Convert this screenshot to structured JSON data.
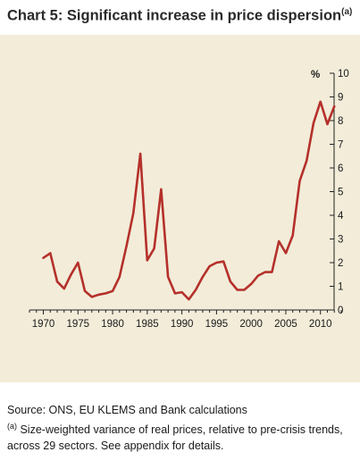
{
  "title": {
    "text": "Chart 5: Significant increase in price dispersion",
    "marker": "(a)"
  },
  "chart_data": {
    "type": "line",
    "title": "Chart 5: Significant increase in price dispersion",
    "xlabel": "",
    "ylabel": "",
    "y_unit": "%",
    "xlim": [
      1968,
      2013
    ],
    "ylim": [
      0,
      10
    ],
    "x_ticks": [
      1970,
      1975,
      1980,
      1985,
      1990,
      1995,
      2000,
      2005,
      2010
    ],
    "y_ticks": [
      0,
      1,
      2,
      3,
      4,
      5,
      6,
      7,
      8,
      9,
      10
    ],
    "y_axis_position": "right",
    "grid": false,
    "series_color": "#b5302a",
    "series": [
      {
        "x": [
          1970,
          1971,
          1972,
          1973,
          1974,
          1975,
          1976,
          1977,
          1978,
          1979,
          1980,
          1981,
          1982,
          1983,
          1984,
          1985,
          1986,
          1987,
          1988,
          1989,
          1990,
          1991,
          1992,
          1993,
          1994,
          1995,
          1996,
          1997,
          1998,
          1999,
          2000,
          2001,
          2002,
          2003,
          2004,
          2005,
          2006,
          2007,
          2008,
          2009,
          2010,
          2011,
          2012
        ],
        "values": [
          2.2,
          2.4,
          1.2,
          0.9,
          1.5,
          2.0,
          0.8,
          0.55,
          0.65,
          0.7,
          0.8,
          1.4,
          2.7,
          4.1,
          6.6,
          2.1,
          2.6,
          5.1,
          1.4,
          0.7,
          0.75,
          0.45,
          0.85,
          1.4,
          1.85,
          2.0,
          2.05,
          1.2,
          0.85,
          0.85,
          1.1,
          1.45,
          1.6,
          1.6,
          2.9,
          2.4,
          3.15,
          5.45,
          6.3,
          7.9,
          8.8,
          7.85,
          8.6
        ]
      }
    ]
  },
  "footer": {
    "source": "Source: ONS, EU KLEMS and Bank calculations",
    "note_marker": "(a)",
    "note_line1": " Size-weighted variance of real prices, relative to pre-crisis trends,",
    "note_line2": "across 29 sectors.  See appendix for details."
  }
}
